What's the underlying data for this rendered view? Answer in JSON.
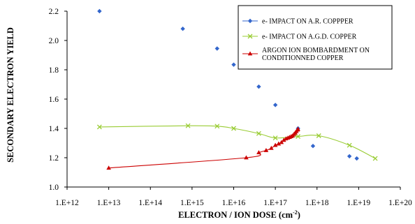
{
  "chart_data": {
    "type": "scatter",
    "title": "",
    "xlabel": "ELECTRON /  ION DOSE (cm",
    "xlabel_superscript": "-2",
    "xlabel_suffix": ")",
    "ylabel": "SECONDARY ELECTRON YIELD",
    "x_scale": "log",
    "xlim": [
      1000000000000.0,
      1e+20
    ],
    "ylim": [
      1.0,
      2.2
    ],
    "grid": false,
    "legend_position": "top-right",
    "x_ticks": [
      {
        "value": 1000000000000.0,
        "label": "1.E+12"
      },
      {
        "value": 10000000000000.0,
        "label": "1.E+13"
      },
      {
        "value": 100000000000000.0,
        "label": "1.E+14"
      },
      {
        "value": 1000000000000000.0,
        "label": "1.E+15"
      },
      {
        "value": 1e+16,
        "label": "1.E+16"
      },
      {
        "value": 1e+17,
        "label": "1.E+17"
      },
      {
        "value": 1e+18,
        "label": "1.E+18"
      },
      {
        "value": 1e+19,
        "label": "1.E+19"
      },
      {
        "value": 1e+20,
        "label": "1.E+20"
      }
    ],
    "y_ticks": [
      {
        "value": 1.0,
        "label": "1.0"
      },
      {
        "value": 1.2,
        "label": "1.2"
      },
      {
        "value": 1.4,
        "label": "1.4"
      },
      {
        "value": 1.6,
        "label": "1.6"
      },
      {
        "value": 1.8,
        "label": "1.8"
      },
      {
        "value": 2.0,
        "label": "2.0"
      },
      {
        "value": 2.2,
        "label": "2.2"
      }
    ],
    "series": [
      {
        "name": "e- IMPACT ON A.R. COPPPER",
        "color": "#3366cc",
        "marker": "diamond",
        "line": false,
        "points": [
          {
            "x": 6000000000000.0,
            "y": 2.2
          },
          {
            "x": 600000000000000.0,
            "y": 2.08
          },
          {
            "x": 4000000000000000.0,
            "y": 1.945
          },
          {
            "x": 1e+16,
            "y": 1.835
          },
          {
            "x": 4e+16,
            "y": 1.685
          },
          {
            "x": 1e+17,
            "y": 1.56
          },
          {
            "x": 3.5e+17,
            "y": 1.4
          },
          {
            "x": 8e+17,
            "y": 1.28
          },
          {
            "x": 6e+18,
            "y": 1.21
          },
          {
            "x": 9e+18,
            "y": 1.195
          }
        ]
      },
      {
        "name": "e- IMPACT ON A.G.D. COPPER",
        "color": "#99cc33",
        "marker": "x",
        "line": true,
        "points": [
          {
            "x": 6000000000000.0,
            "y": 1.41
          },
          {
            "x": 800000000000000.0,
            "y": 1.418
          },
          {
            "x": 4000000000000000.0,
            "y": 1.415
          },
          {
            "x": 1e+16,
            "y": 1.4
          },
          {
            "x": 4e+16,
            "y": 1.365
          },
          {
            "x": 1e+17,
            "y": 1.335
          },
          {
            "x": 3.5e+17,
            "y": 1.345
          },
          {
            "x": 1.1e+18,
            "y": 1.35
          },
          {
            "x": 6e+18,
            "y": 1.285
          },
          {
            "x": 2.5e+19,
            "y": 1.195
          }
        ]
      },
      {
        "name": "ARGON ION BOMBARDMENT ON CONDITIONNED COPPER",
        "color": "#cc0000",
        "marker": "triangle",
        "line": true,
        "points": [
          {
            "x": 10000000000000.0,
            "y": 1.13
          },
          {
            "x": 2e+16,
            "y": 1.2
          },
          {
            "x": 4e+16,
            "y": 1.235
          },
          {
            "x": 6e+16,
            "y": 1.25
          },
          {
            "x": 8e+16,
            "y": 1.265
          },
          {
            "x": 1e+17,
            "y": 1.285
          },
          {
            "x": 1.2e+17,
            "y": 1.295
          },
          {
            "x": 1.4e+17,
            "y": 1.305
          },
          {
            "x": 1.6e+17,
            "y": 1.32
          },
          {
            "x": 1.8e+17,
            "y": 1.33
          },
          {
            "x": 2e+17,
            "y": 1.335
          },
          {
            "x": 2.2e+17,
            "y": 1.34
          },
          {
            "x": 2.4e+17,
            "y": 1.345
          },
          {
            "x": 2.6e+17,
            "y": 1.35
          },
          {
            "x": 2.8e+17,
            "y": 1.36
          },
          {
            "x": 3e+17,
            "y": 1.37
          },
          {
            "x": 3.2e+17,
            "y": 1.38
          },
          {
            "x": 3.4e+17,
            "y": 1.39
          },
          {
            "x": 3.5e+17,
            "y": 1.395
          }
        ]
      }
    ],
    "legend": [
      {
        "text": [
          "e- IMPACT ON A.R. COPPPER"
        ]
      },
      {
        "text": [
          "e- IMPACT ON A.G.D. COPPER"
        ]
      },
      {
        "text": [
          "ARGON ION BOMBARDMENT ON",
          "CONDITIONNED COPPER"
        ]
      }
    ]
  }
}
